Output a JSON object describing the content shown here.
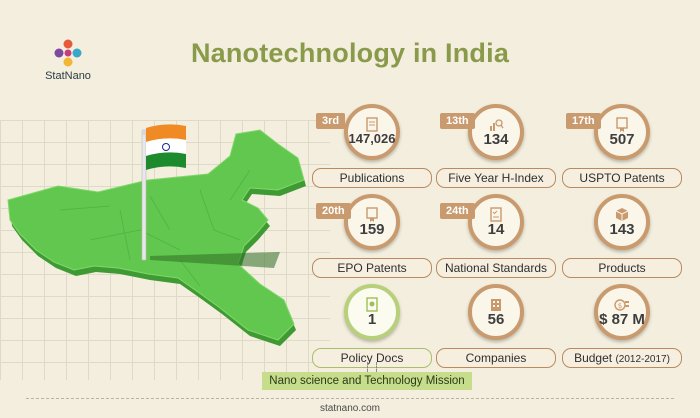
{
  "logo": {
    "name": "StatNano"
  },
  "title": "Nanotechnology in India",
  "colors": {
    "accent_brown": "#c99a6d",
    "accent_green": "#b8d07a",
    "title_green": "#8a9a4b",
    "map_green": "#5cc44a"
  },
  "stats": [
    {
      "rank": "3rd",
      "value": "147,026",
      "label": "Publications",
      "icon": "document-icon"
    },
    {
      "rank": "13th",
      "value": "134",
      "label": "Five Year H-Index",
      "icon": "chart-magnifier-icon"
    },
    {
      "rank": "17th",
      "value": "507",
      "label": "USPTO Patents",
      "icon": "patent-certificate-icon"
    },
    {
      "rank": "20th",
      "value": "159",
      "label": "EPO Patents",
      "icon": "patent-certificate-icon"
    },
    {
      "rank": "24th",
      "value": "14",
      "label": "National Standards",
      "icon": "checklist-icon"
    },
    {
      "value": "143",
      "label": "Products",
      "icon": "box-icon"
    },
    {
      "value": "1",
      "label": "Policy Docs",
      "icon": "policy-document-icon"
    },
    {
      "value": "56",
      "label": "Companies",
      "icon": "building-icon"
    },
    {
      "value": "$ 87 M",
      "label": "Budget",
      "label_suffix": "(2012-2017)",
      "icon": "money-icon"
    }
  ],
  "mission": "Nano science and Technology Mission",
  "footer": "statnano.com"
}
